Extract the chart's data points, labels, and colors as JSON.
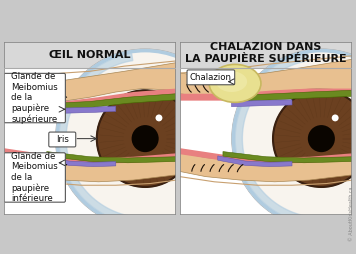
{
  "title_left": "ŒIL NORMAL",
  "title_right": "CHALAZION DANS\nLA PAUPIÈRE SUPÉRIEURE",
  "label_upper_gland": "Glande de\nMeibomius\nde la\npaupière\nsupérieure",
  "label_iris": "Iris",
  "label_lower_gland": "Glande de\nMeibomius\nde la\npaupière\ninférieure",
  "label_chalazion": "Chalazion",
  "bg_color": "#c8c8c8",
  "panel_bg": "#ffffff",
  "title_bg": "#d8d8d8",
  "skin_color": "#e8c090",
  "skin_light": "#f0d0a8",
  "skin_fold": "#c8a070",
  "eyelid_pink": "#e88080",
  "eyelid_pink2": "#d06060",
  "iris_color": "#6b4020",
  "iris_mid": "#5a3518",
  "iris_dark": "#3a2010",
  "sclera_color": "#f8f4ee",
  "cornea_blue": "#b0cce0",
  "cornea_light": "#d8eaf8",
  "meibomian_color": "#8878cc",
  "meibomian_dark": "#6658aa",
  "tarsal_color": "#6a8a20",
  "tarsal_light": "#8aaa40",
  "chalazion_color": "#e8e090",
  "chalazion_mid": "#f0eaaa",
  "chalazion_outline": "#c8b860",
  "text_color": "#111111",
  "title_fontsize": 8,
  "label_fontsize": 6.2,
  "watermark": "© AboutKidsHealth.ca"
}
